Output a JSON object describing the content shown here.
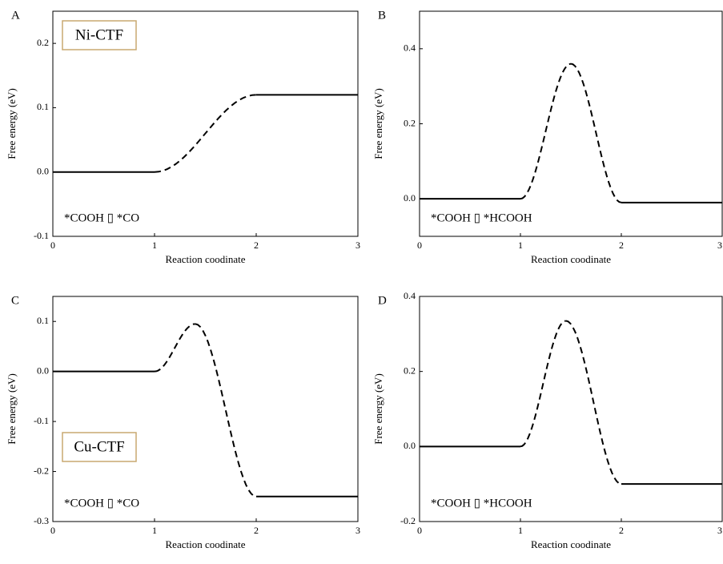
{
  "chart_data": [
    {
      "type": "energy",
      "panel": "A",
      "label": "Ni-CTF",
      "annotation": "*COOH ▯ *CO",
      "x_label": "Reaction coodinate",
      "y_label": "Free energy (eV)",
      "x": [
        0,
        1,
        2,
        3
      ],
      "values": [
        0,
        0,
        0.12,
        0.12
      ],
      "color": "#000000",
      "xlim": [
        0,
        3
      ],
      "xticks": [
        0,
        1,
        2,
        3
      ],
      "ylim": [
        -0.1,
        0.25
      ],
      "yticks": [
        -0.1,
        {
          "value": 0,
          "label": "0.0"
        },
        0.1,
        0.2
      ]
    },
    {
      "type": "energy",
      "panel": "B",
      "annotation": "*COOH ▯ *HCOOH",
      "x_label": "Reaction coodinate",
      "y_label": "Free energy (eV)",
      "x": [
        0,
        1,
        1.5,
        2,
        3
      ],
      "values": [
        0,
        0,
        0.36,
        -0.01,
        -0.01
      ],
      "color": "#000000",
      "xlim": [
        0,
        3
      ],
      "xticks": [
        0,
        1,
        2,
        3
      ],
      "ylim": [
        -0.1,
        0.5
      ],
      "yticks": [
        {
          "value": 0,
          "label": "0.0"
        },
        0.2,
        0.4
      ]
    },
    {
      "type": "energy",
      "panel": "C",
      "label": "Cu-CTF",
      "annotation": "*COOH ▯ *CO",
      "x_label": "Reaction coodinate",
      "y_label": "Free energy (eV)",
      "x": [
        0,
        1,
        1.4,
        2,
        3
      ],
      "values": [
        0,
        0,
        0.095,
        -0.25,
        -0.25
      ],
      "color": "#000000",
      "xlim": [
        0,
        3
      ],
      "xticks": [
        0,
        1,
        2,
        3
      ],
      "ylim": [
        -0.3,
        0.15
      ],
      "yticks": [
        -0.3,
        -0.2,
        -0.1,
        {
          "value": 0,
          "label": "0.0"
        },
        0.1
      ]
    },
    {
      "type": "energy",
      "panel": "D",
      "annotation": "*COOH ▯ *HCOOH",
      "x_label": "Reaction coodinate",
      "y_label": "Free energy (eV)",
      "x": [
        0,
        1,
        1.45,
        2,
        3
      ],
      "values": [
        0,
        0,
        0.335,
        -0.1,
        -0.1
      ],
      "color": "#000000",
      "xlim": [
        0,
        3
      ],
      "xticks": [
        0,
        1,
        2,
        3
      ],
      "ylim": [
        -0.2,
        0.4
      ],
      "yticks": [
        -0.2,
        {
          "value": 0,
          "label": "0.0"
        },
        0.2,
        0.4
      ]
    }
  ]
}
